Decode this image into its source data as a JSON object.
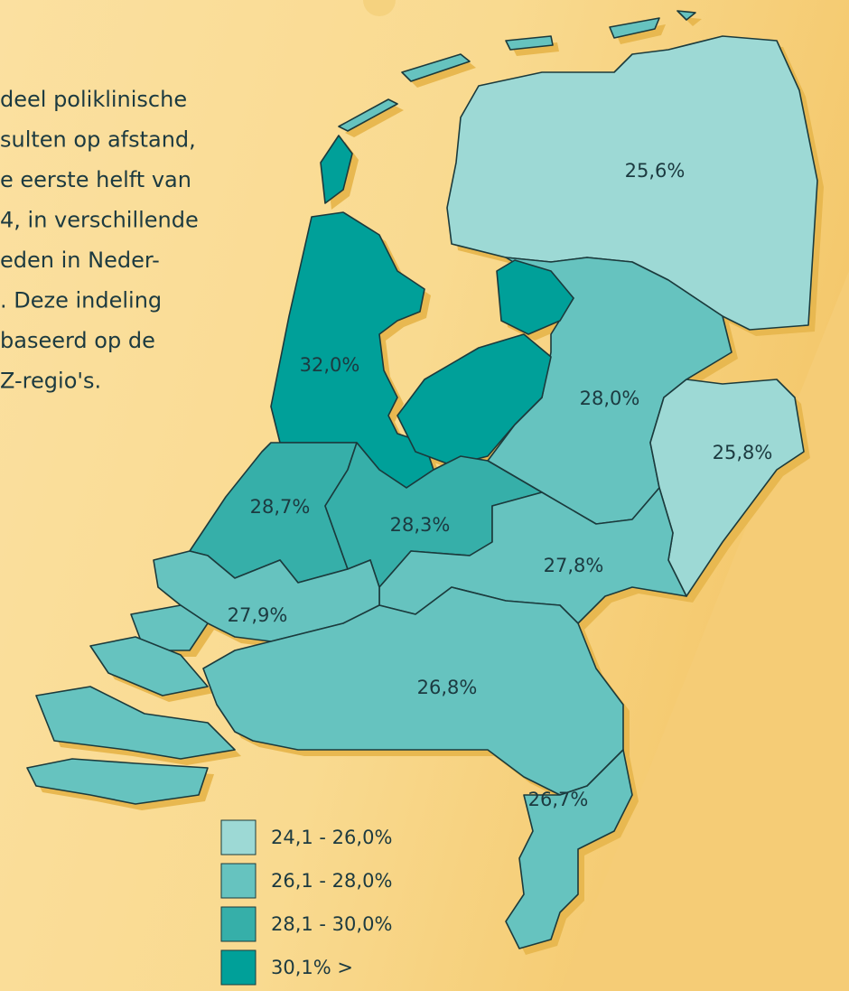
{
  "intro": {
    "lines": [
      "deel poliklinische",
      "sulten op afstand,",
      "e eerste helft van",
      "4, in verschillende",
      "eden in Neder-",
      ". Deze indeling",
      "baseerd op de",
      "Z-regio's."
    ]
  },
  "regions": [
    {
      "label": "25,6%",
      "color": "#9dd9d5"
    },
    {
      "label": "28,0%",
      "color": "#66c3bf"
    },
    {
      "label": "25,8%",
      "color": "#9dd9d5"
    },
    {
      "label": "32,0%",
      "color": "#00a099"
    },
    {
      "label": "28,7%",
      "color": "#36afa9"
    },
    {
      "label": "28,3%",
      "color": "#36afa9"
    },
    {
      "label": "27,8%",
      "color": "#66c3bf"
    },
    {
      "label": "27,9%",
      "color": "#66c3bf"
    },
    {
      "label": "26,8%",
      "color": "#66c3bf"
    },
    {
      "label": "26,7%",
      "color": "#66c3bf"
    }
  ],
  "legend": [
    {
      "label": "24,1 - 26,0%",
      "color": "#9dd9d5"
    },
    {
      "label": "26,1 - 28,0%",
      "color": "#66c3bf"
    },
    {
      "label": "28,1 - 30,0%",
      "color": "#36afa9"
    },
    {
      "label": "30,1% >",
      "color": "#00a099"
    }
  ]
}
